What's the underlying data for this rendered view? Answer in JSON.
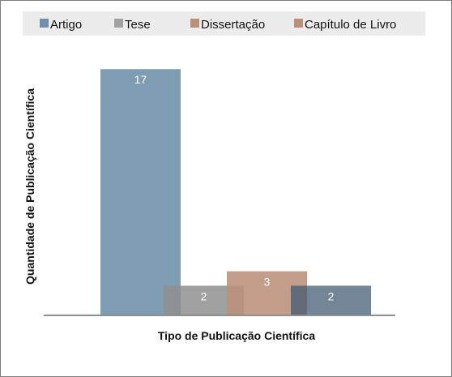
{
  "chart_data": {
    "type": "bar",
    "xlabel": "Tipo de Publicação Científica",
    "ylabel": "Quantidade de Publicação Científica",
    "ylim": [
      0,
      17.8
    ],
    "grid": false,
    "legend_position": "top",
    "series": [
      {
        "name": "Artigo",
        "value": 17,
        "label": "17",
        "color": "#7798ae",
        "opacity": 0.95
      },
      {
        "name": "Tese",
        "value": 2,
        "label": "2",
        "color": "#8f8f8f",
        "opacity": 0.85
      },
      {
        "name": "Dissertação",
        "value": 3,
        "label": "3",
        "color": "#b9917a",
        "opacity": 0.88
      },
      {
        "name": "Capítulo de Livro",
        "value": 2,
        "label": "2",
        "color": "#3c5770",
        "opacity": 0.72
      }
    ],
    "legend_swatch_colors": [
      "#6f90ab",
      "#a3a3a3",
      "#b9917a",
      "#b9917a"
    ]
  }
}
